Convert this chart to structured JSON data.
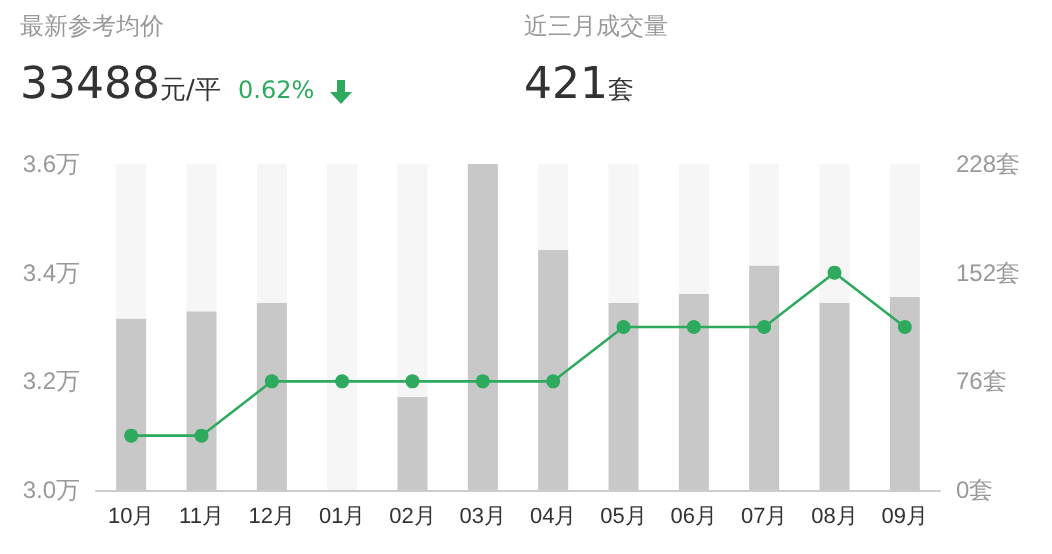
{
  "chart_data": {
    "type": "bar",
    "categories": [
      "10月",
      "11月",
      "12月",
      "01月",
      "02月",
      "03月",
      "04月",
      "05月",
      "06月",
      "07月",
      "08月",
      "09月"
    ],
    "series": [
      {
        "type": "bar",
        "axis": "y2",
        "color": "#c8c8c8",
        "values": [
          120,
          125,
          131,
          0,
          65,
          228,
          168,
          131,
          137,
          157,
          131,
          135
        ]
      },
      {
        "axis": "y2",
        "color": "#f6f6f6",
        "values": [
          108,
          103,
          97,
          228,
          163,
          null,
          60,
          97,
          91,
          71,
          97,
          93
        ]
      },
      {
        "type": "line",
        "color": "#2eaa5e",
        "values": [
          3.1,
          3.1,
          3.2,
          3.2,
          3.2,
          3.2,
          3.2,
          3.3,
          3.3,
          3.3,
          3.4,
          3.3
        ]
      }
    ],
    "ylim": [
      3.0,
      3.6
    ],
    "yticks": [
      {
        "value": 3.0,
        "label": "3.0万"
      },
      {
        "value": 3.2,
        "label": "3.2万"
      },
      {
        "value": 3.4,
        "label": "3.4万"
      },
      {
        "value": 3.6,
        "label": "3.6万"
      }
    ],
    "y2lim": [
      0,
      228
    ],
    "y2ticks": [
      {
        "value": 0,
        "label": "0套"
      },
      {
        "value": 76,
        "label": "76套"
      },
      {
        "value": 152,
        "label": "152套"
      },
      {
        "value": 228,
        "label": "228套"
      }
    ],
    "grid": false,
    "stacked": true,
    "marker": "circle",
    "annotations": [
      "最新参考均价",
      "33488元/平",
      "0.62%",
      "近三月成交量",
      "421套"
    ]
  }
}
